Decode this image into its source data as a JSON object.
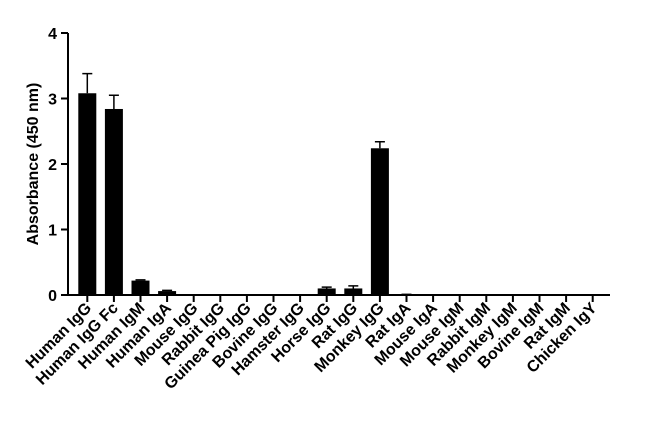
{
  "chart_data": {
    "type": "bar",
    "y_label": "Absorbance (450 nm)",
    "categories": [
      "Human IgG",
      "Human IgG Fc",
      "Human IgM",
      "Human IgA",
      "Mouse IgG",
      "Rabbit IgG",
      "Guinea Pig IgG",
      "Bovine IgG",
      "Hamster IgG",
      "Horse IgG",
      "Rat IgG",
      "Monkey IgG",
      "Rat IgA",
      "Mouse IgA",
      "Mouse IgM",
      "Rabbit IgM",
      "Monkey IgM",
      "Bovine IgM",
      "Rat IgM",
      "Chicken IgY"
    ],
    "values": [
      3.08,
      2.84,
      0.22,
      0.06,
      0,
      0,
      0,
      0,
      0,
      0.1,
      0.1,
      2.24,
      0.01,
      0,
      0,
      0,
      0,
      0,
      0,
      0
    ],
    "errors": [
      0.3,
      0.21,
      0.01,
      0.01,
      0,
      0,
      0,
      0,
      0,
      0.02,
      0.04,
      0.1,
      0,
      0,
      0,
      0,
      0,
      0,
      0,
      0
    ],
    "color": "#000000",
    "ylim": [
      0,
      4
    ],
    "yticks": [
      0,
      1,
      2,
      3,
      4
    ]
  }
}
